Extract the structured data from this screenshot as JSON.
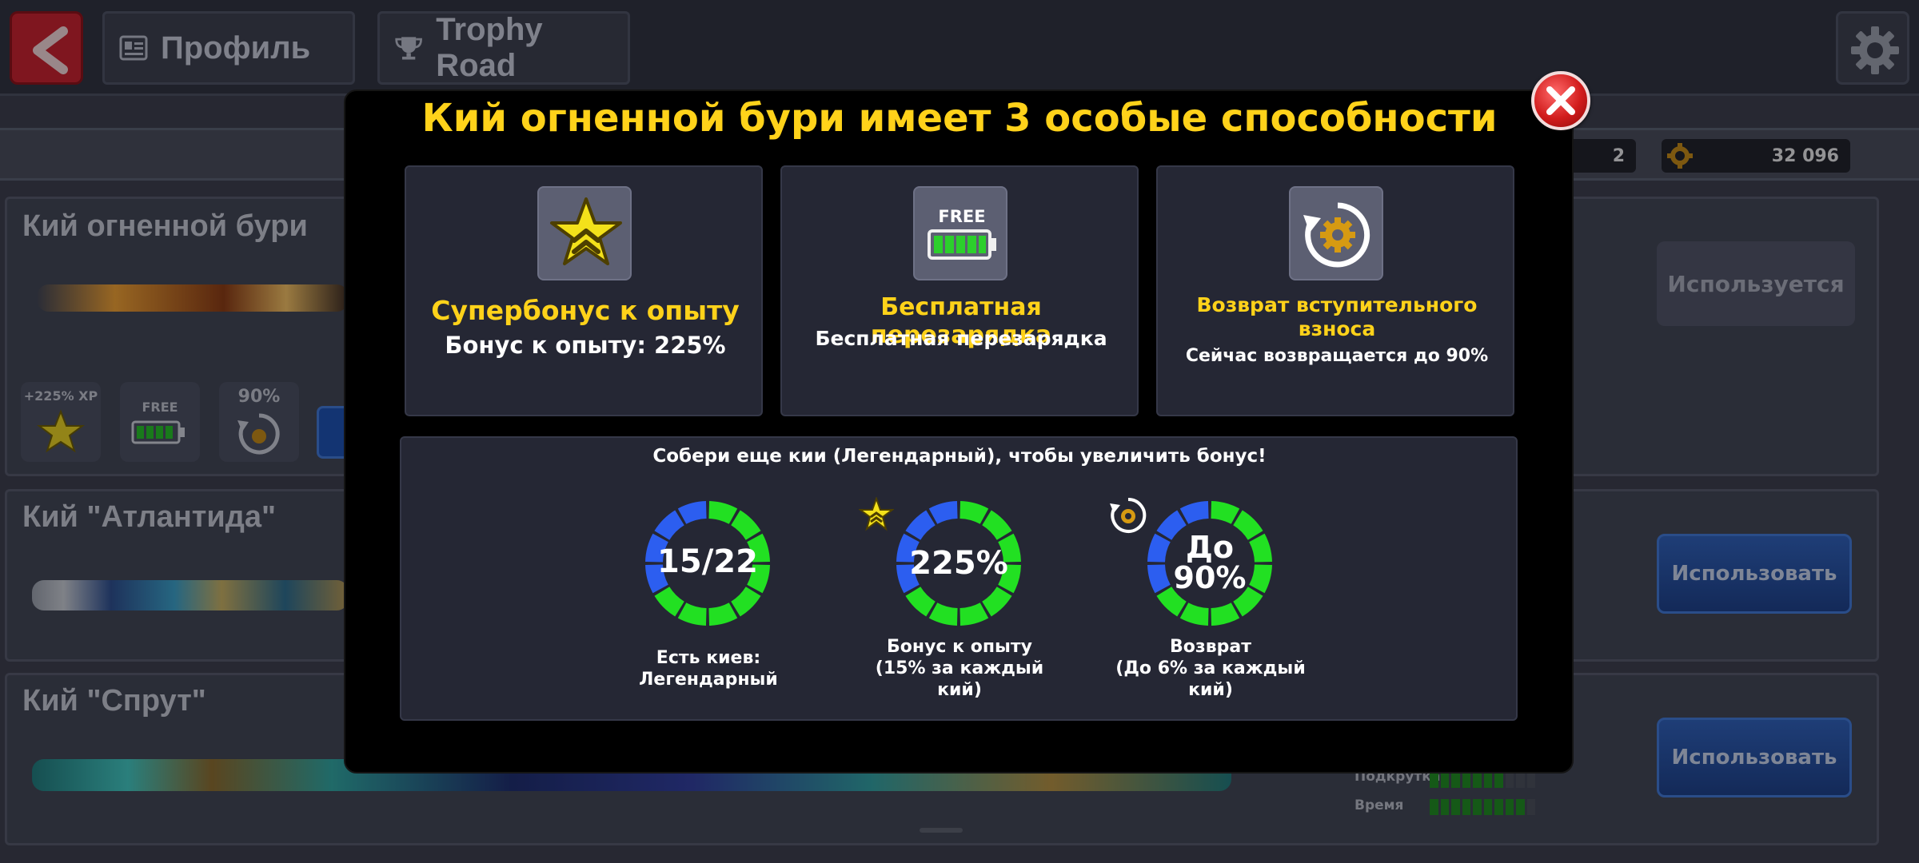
{
  "header": {
    "profile_tab": "Профиль",
    "trophy_tab": "Trophy Road"
  },
  "counters": {
    "small": "2",
    "coins": "32 096"
  },
  "cues": [
    {
      "name": "Кий огненной бури",
      "status": "Используется"
    },
    {
      "name": "Кий \"Атлантида\"",
      "action": "Использовать"
    },
    {
      "name": "Кий \"Спрут\"",
      "action": "Использовать"
    }
  ],
  "mini_abilities": {
    "xp": "+225% XP",
    "free": "FREE",
    "refund": "90%"
  },
  "stats": [
    {
      "label": "Подкрутка",
      "level": 0.75
    },
    {
      "label": "Время",
      "level": 0.87
    }
  ],
  "modal": {
    "title": "Кий огненной бури имеет 3 особые способности",
    "abilities": [
      {
        "icon": "xp-star-icon",
        "name": "Супербонус к опыту",
        "desc": "Бонус к опыту: 225%"
      },
      {
        "icon": "free-battery-icon",
        "icon_text": "FREE",
        "name": "Бесплатная перезарядка",
        "desc": "Бесплатная перезарядка"
      },
      {
        "icon": "refund-coin-icon",
        "name": "Возврат вступительного взноса",
        "desc": "Сейчас возвращается до 90%"
      }
    ],
    "bonus": {
      "header": "Собери еще кии (Легендарный), чтобы увеличить бонус!",
      "rings": [
        {
          "value": "15/22",
          "caption_line1": "Есть киев:",
          "caption_line2": "Легендарный",
          "fill": 0.68
        },
        {
          "value": "225%",
          "caption_line1": "Бонус к опыту",
          "caption_line2": "(15% за каждый",
          "caption_line3": "кий)",
          "fill": 0.68
        },
        {
          "value_line1": "До",
          "value_line2": "90%",
          "caption_line1": "Возврат",
          "caption_line2": "(До 6% за каждый",
          "caption_line3": "кий)",
          "fill": 0.68
        }
      ]
    }
  },
  "colors": {
    "accent_yellow": "#ffd21a",
    "ring_green": "#22e022",
    "ring_blue": "#2c5ef0",
    "close_red": "#d11c1c"
  }
}
